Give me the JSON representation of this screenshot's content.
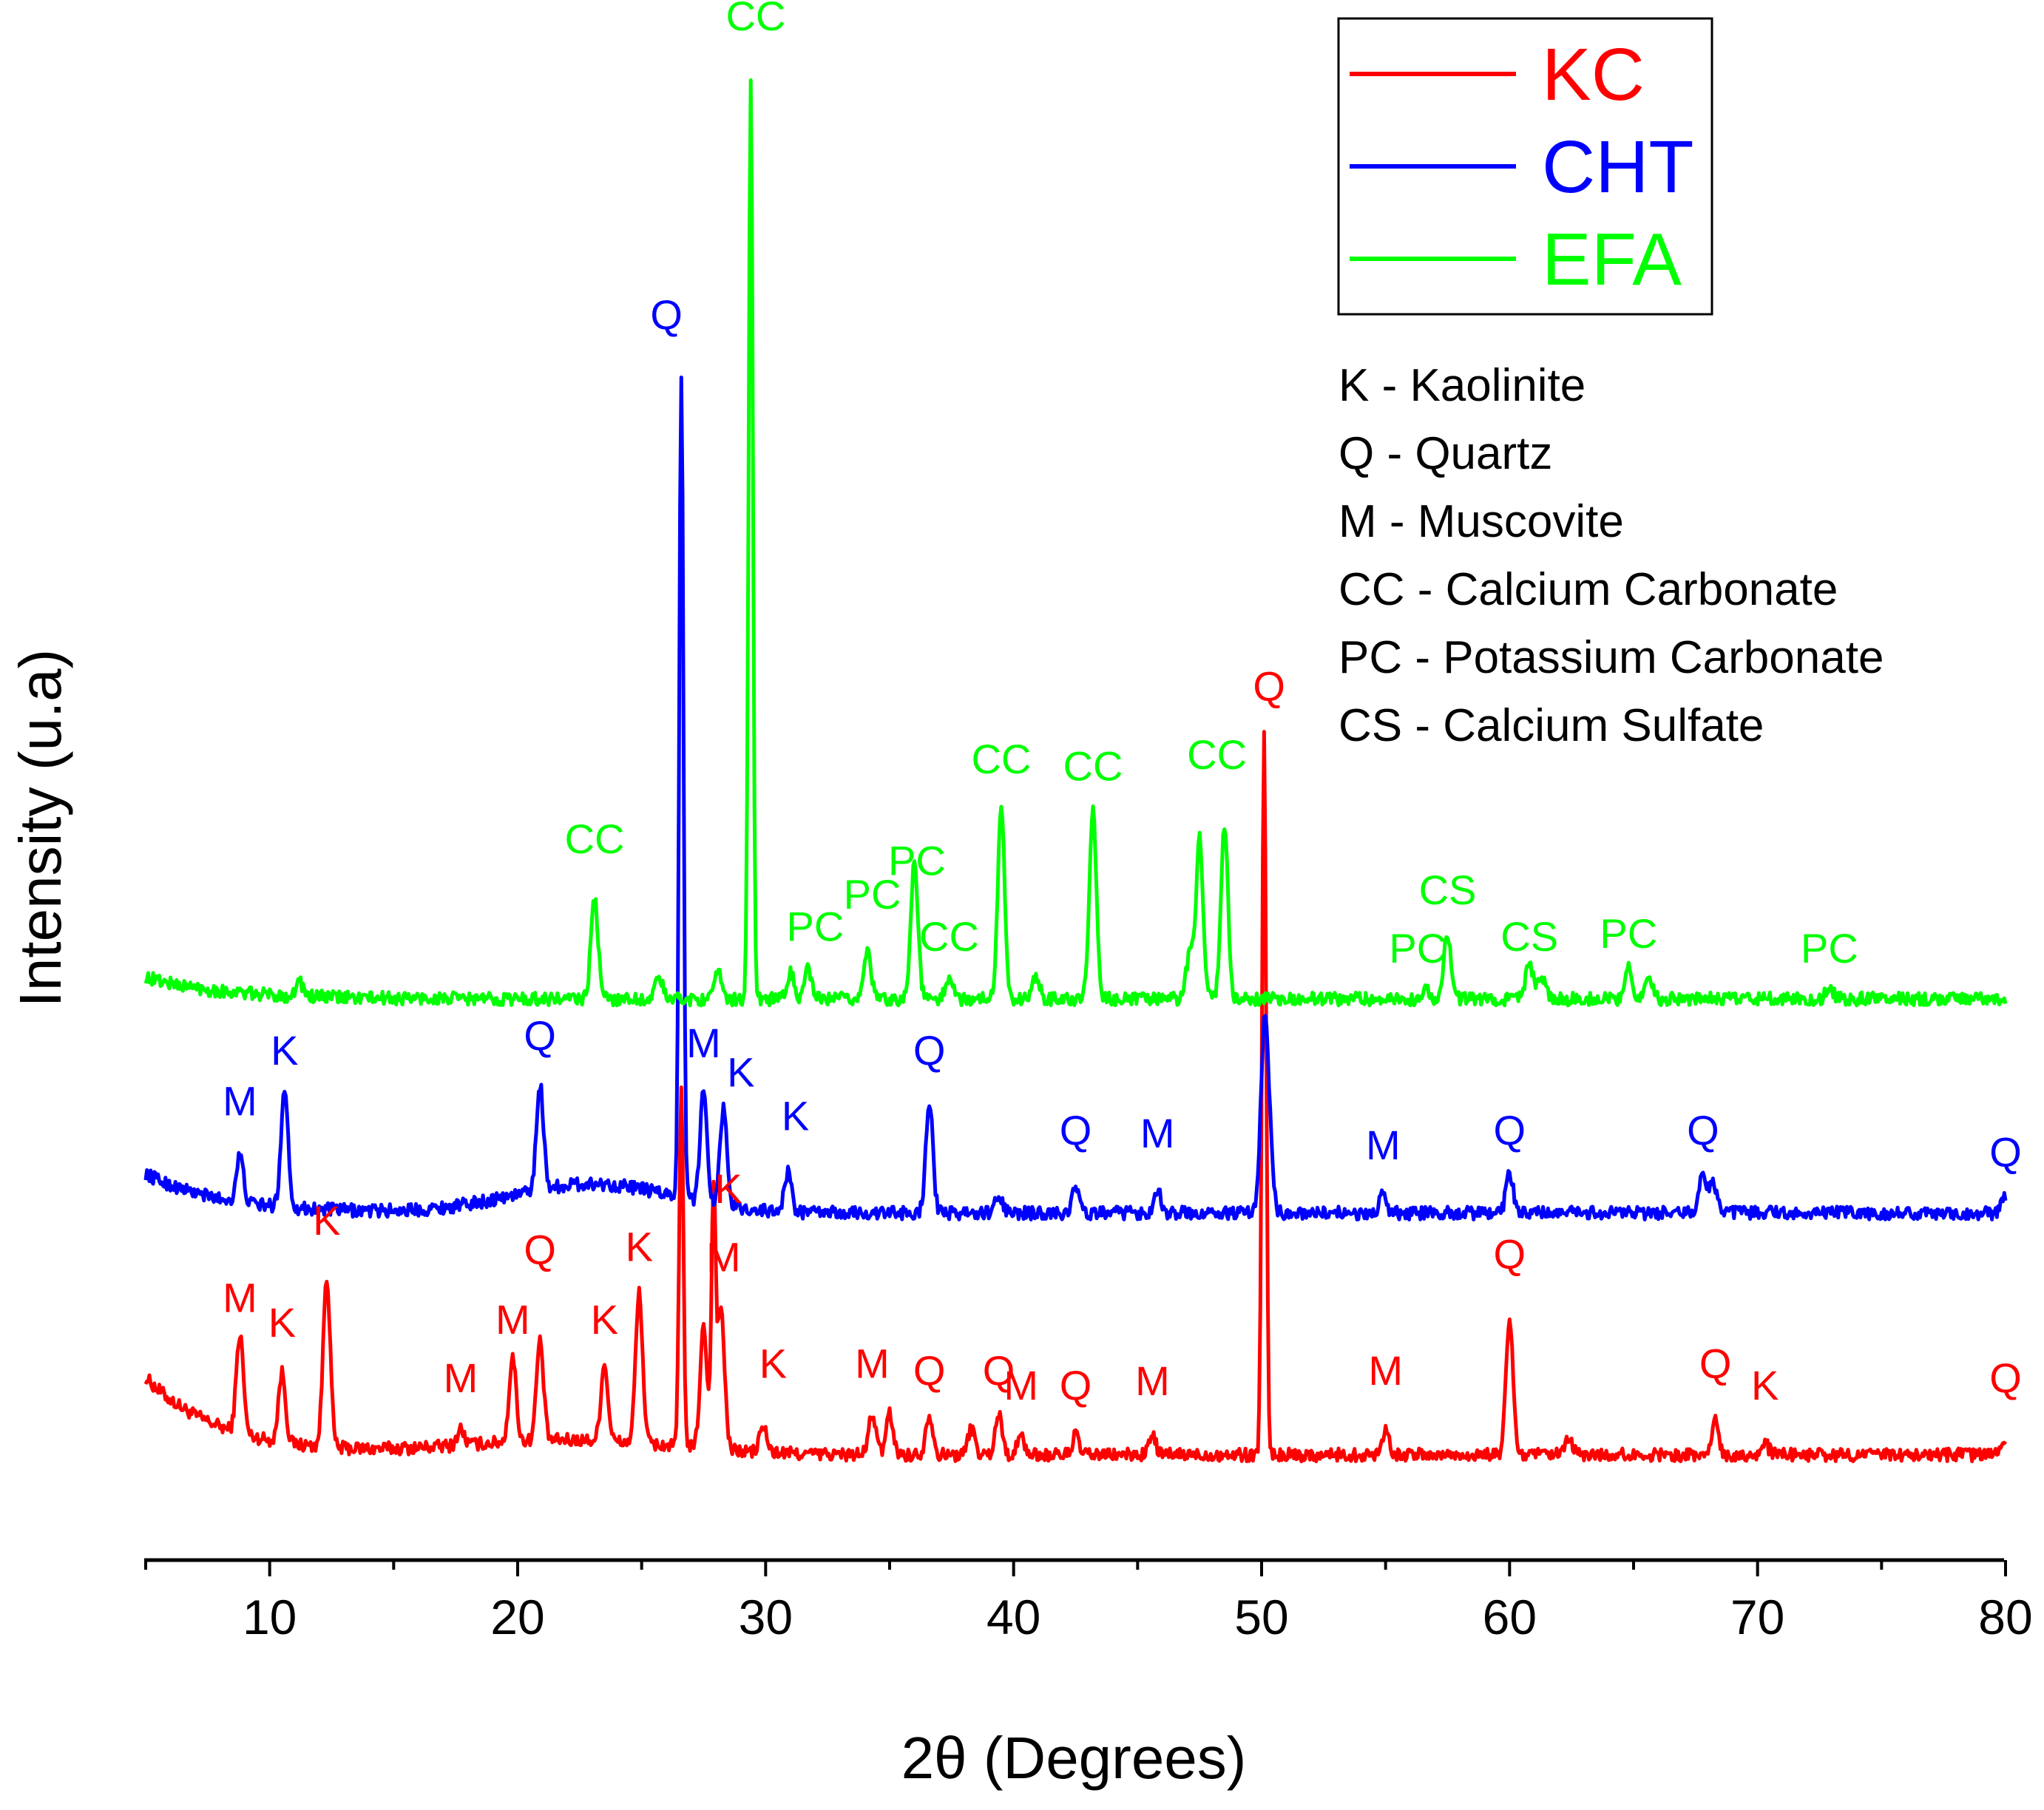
{
  "chart_data": {
    "type": "line",
    "title": "",
    "xlabel": "2θ (Degrees)",
    "ylabel": "Intensity (u.a)",
    "xlim": [
      5,
      80
    ],
    "ylim": [
      0,
      100
    ],
    "xticks": [
      10,
      20,
      30,
      40,
      50,
      60,
      70,
      80
    ],
    "yticks_shown": false,
    "grid": false,
    "legend_position": "top-right",
    "series": [
      {
        "name": "KC",
        "color": "#ff0000",
        "baseline": 5.7,
        "start_level": 11,
        "peaks": [
          {
            "x": 8.8,
            "y": 12.5,
            "label": "M",
            "label_y": 15.5
          },
          {
            "x": 10.5,
            "y": 10.5,
            "label": "K",
            "label_y": 13.8
          },
          {
            "x": 12.3,
            "y": 17.5,
            "label": "K",
            "label_y": 20.8
          },
          {
            "x": 17.7,
            "y": 6.8,
            "label": "M",
            "label_y": 10.0
          },
          {
            "x": 19.8,
            "y": 11.5,
            "label": "M",
            "label_y": 14.0
          },
          {
            "x": 20.9,
            "y": 12.5,
            "label": "Q",
            "label_y": 18.8
          },
          {
            "x": 23.5,
            "y": 11.0,
            "label": "K",
            "label_y": 14.0
          },
          {
            "x": 24.9,
            "y": 16.0,
            "label": "K",
            "label_y": 19.0
          },
          {
            "x": 26.6,
            "y": 30.0
          },
          {
            "x": 27.5,
            "y": 14.0
          },
          {
            "x": 27.9,
            "y": 23.0,
            "label": "K",
            "label_y": 23.0,
            "label_x": 28.5
          },
          {
            "x": 28.2,
            "y": 15.5,
            "label": "M",
            "label_y": 18.3,
            "label_x": 28.3
          },
          {
            "x": 29.9,
            "y": 7.5,
            "label": "K",
            "label_y": 11.0,
            "label_x": 30.3
          },
          {
            "x": 34.3,
            "y": 8.5,
            "label": "M",
            "label_y": 11.0
          },
          {
            "x": 35.0,
            "y": 8.5
          },
          {
            "x": 36.6,
            "y": 8.5,
            "label": "Q",
            "label_y": 10.5
          },
          {
            "x": 38.3,
            "y": 7.5
          },
          {
            "x": 39.4,
            "y": 8.5,
            "label": "Q",
            "label_y": 10.5
          },
          {
            "x": 40.3,
            "y": 7.0,
            "label": "M",
            "label_y": 9.5
          },
          {
            "x": 42.5,
            "y": 7.0,
            "label": "Q",
            "label_y": 9.5
          },
          {
            "x": 45.6,
            "y": 7.0,
            "label": "M",
            "label_y": 9.8
          },
          {
            "x": 50.1,
            "y": 55.0,
            "label": "Q",
            "label_y": 57.5,
            "label_x": 50.3
          },
          {
            "x": 55.0,
            "y": 7.5,
            "label": "M",
            "label_y": 10.5
          },
          {
            "x": 60.0,
            "y": 15.0,
            "label": "Q",
            "label_y": 18.5
          },
          {
            "x": 62.4,
            "y": 6.8
          },
          {
            "x": 68.3,
            "y": 8.0,
            "label": "Q",
            "label_y": 11.0
          },
          {
            "x": 70.3,
            "y": 6.5,
            "label": "K",
            "label_y": 9.5
          },
          {
            "x": 80.0,
            "y": 7.0,
            "label": "Q",
            "label_y": 10.0
          }
        ]
      },
      {
        "name": "CHT",
        "color": "#0000ff",
        "baseline": 22.3,
        "start_level": 25,
        "peaks": [
          {
            "x": 8.8,
            "y": 25.5,
            "label": "M",
            "label_y": 29.0
          },
          {
            "x": 10.6,
            "y": 30.5,
            "label": "K",
            "label_y": 32.5
          },
          {
            "x": 20.9,
            "y": 29.5,
            "label": "Q",
            "label_y": 33.5
          },
          {
            "x": 26.6,
            "y": 79.0,
            "label": "Q",
            "label_y": 83.0,
            "label_x": 26.0
          },
          {
            "x": 27.5,
            "y": 30.0,
            "label": "M",
            "label_y": 33.0
          },
          {
            "x": 28.3,
            "y": 29.0,
            "label": "K",
            "label_y": 31.0,
            "label_x": 29.0
          },
          {
            "x": 30.9,
            "y": 25.0,
            "label": "K",
            "label_y": 28.0,
            "label_x": 31.2
          },
          {
            "x": 36.6,
            "y": 30.0,
            "label": "Q",
            "label_y": 32.5
          },
          {
            "x": 39.4,
            "y": 23.5
          },
          {
            "x": 42.5,
            "y": 24.0,
            "label": "Q",
            "label_y": 27.0
          },
          {
            "x": 45.8,
            "y": 24.0,
            "label": "M",
            "label_y": 26.8
          },
          {
            "x": 50.1,
            "y": 34.0
          },
          {
            "x": 50.3,
            "y": 27.0
          },
          {
            "x": 54.9,
            "y": 23.5,
            "label": "M",
            "label_y": 26.0
          },
          {
            "x": 60.0,
            "y": 25.0,
            "label": "Q",
            "label_y": 27.0
          },
          {
            "x": 67.8,
            "y": 25.0,
            "label": "Q",
            "label_y": 27.0
          },
          {
            "x": 68.2,
            "y": 24.5
          },
          {
            "x": 80.0,
            "y": 23.5,
            "label": "Q",
            "label_y": 25.5
          }
        ]
      },
      {
        "name": "EFA",
        "color": "#00ff00",
        "baseline": 37.0,
        "start_level": 38.5,
        "peaks": [
          {
            "x": 11.2,
            "y": 38.0
          },
          {
            "x": 23.1,
            "y": 44.0,
            "label": "CC",
            "label_y": 47.0
          },
          {
            "x": 25.7,
            "y": 38.5
          },
          {
            "x": 28.1,
            "y": 38.8
          },
          {
            "x": 29.4,
            "y": 100.0,
            "label": "CC",
            "label_y": 103.5,
            "label_x": 29.6
          },
          {
            "x": 31.0,
            "y": 38.8
          },
          {
            "x": 31.7,
            "y": 39.0,
            "label": "PC",
            "label_y": 41.0,
            "label_x": 32.0
          },
          {
            "x": 34.1,
            "y": 40.5,
            "label": "PC",
            "label_y": 43.2,
            "label_x": 34.3
          },
          {
            "x": 36.0,
            "y": 46.5,
            "label": "PC",
            "label_y": 45.5,
            "label_x": 36.1
          },
          {
            "x": 37.4,
            "y": 38.5,
            "label": "CC",
            "label_y": 40.3,
            "label_x": 37.4
          },
          {
            "x": 39.5,
            "y": 50.0,
            "label": "CC",
            "label_y": 52.5
          },
          {
            "x": 40.9,
            "y": 38.5
          },
          {
            "x": 43.2,
            "y": 50.0,
            "label": "CC",
            "label_y": 52.0
          },
          {
            "x": 47.1,
            "y": 40.0
          },
          {
            "x": 47.5,
            "y": 48.0
          },
          {
            "x": 48.5,
            "y": 49.0,
            "label": "CC",
            "label_y": 52.8,
            "label_x": 48.2
          },
          {
            "x": 56.6,
            "y": 37.8,
            "label": "PC",
            "label_y": 39.5,
            "label_x": 56.3
          },
          {
            "x": 57.5,
            "y": 41.5,
            "label": "CS",
            "label_y": 43.5
          },
          {
            "x": 60.8,
            "y": 39.5,
            "label": "CS",
            "label_y": 40.3
          },
          {
            "x": 61.3,
            "y": 38.5
          },
          {
            "x": 64.8,
            "y": 39.5,
            "label": "PC",
            "label_y": 40.5
          },
          {
            "x": 65.6,
            "y": 38.5
          },
          {
            "x": 72.9,
            "y": 37.8,
            "label": "PC",
            "label_y": 39.5
          }
        ]
      }
    ],
    "phase_key": [
      "K - Kaolinite",
      "Q - Quartz",
      "M - Muscovite",
      "CC - Calcium Carbonate",
      "PC - Potassium Carbonate",
      "CS - Calcium Sulfate"
    ]
  }
}
